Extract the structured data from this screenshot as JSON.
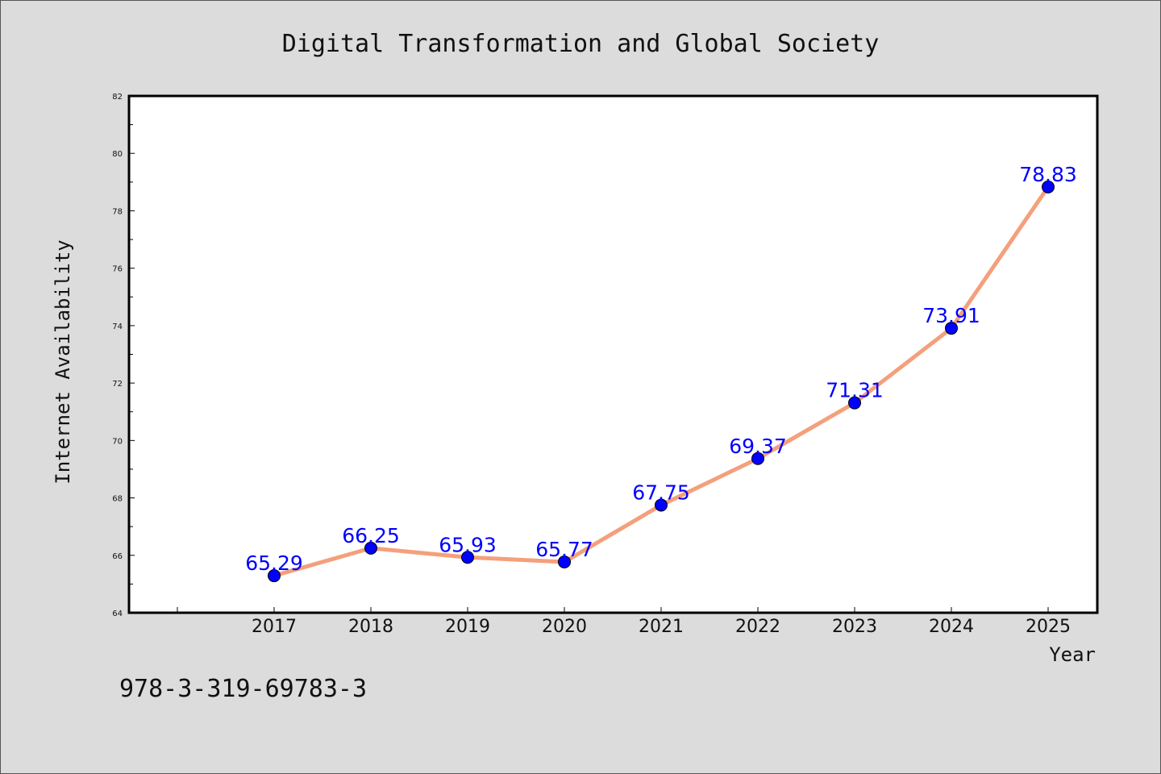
{
  "chart_data": {
    "type": "line",
    "title": "Digital Transformation and Global Society",
    "xlabel": "Year",
    "ylabel": "Internet Availability",
    "categories": [
      "2017",
      "2018",
      "2019",
      "2020",
      "2021",
      "2022",
      "2023",
      "2024",
      "2025"
    ],
    "series": [
      {
        "values": [
          65.29,
          66.25,
          65.93,
          65.77,
          67.75,
          69.37,
          71.31,
          73.91,
          78.83
        ],
        "data_labels": [
          "65.29",
          "66.25",
          "65.93",
          "65.77",
          "67.75",
          "69.37",
          "71.31",
          "73.91",
          "78.83"
        ],
        "line_color": "#f4a07c",
        "marker_color": "#0000ff"
      }
    ],
    "ylim": [
      64,
      82
    ],
    "yticks": [
      "64",
      "66",
      "68",
      "70",
      "72",
      "74",
      "76",
      "78",
      "80",
      "82"
    ],
    "grid": false,
    "legend": "none"
  },
  "footer_note": "978-3-319-69783-3"
}
